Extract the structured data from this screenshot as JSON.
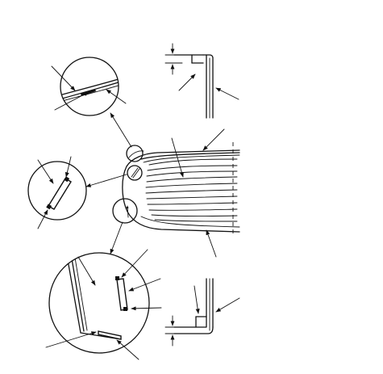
{
  "diagram": {
    "has_text_labels": false,
    "views": [
      "panel-overview",
      "upper-edge-detail",
      "middle-clip-detail",
      "lower-corner-detail",
      "upper-cross-section",
      "lower-cross-section"
    ],
    "leader_arrows": 21,
    "stroke_color": "#111111",
    "background_color": "#ffffff"
  }
}
